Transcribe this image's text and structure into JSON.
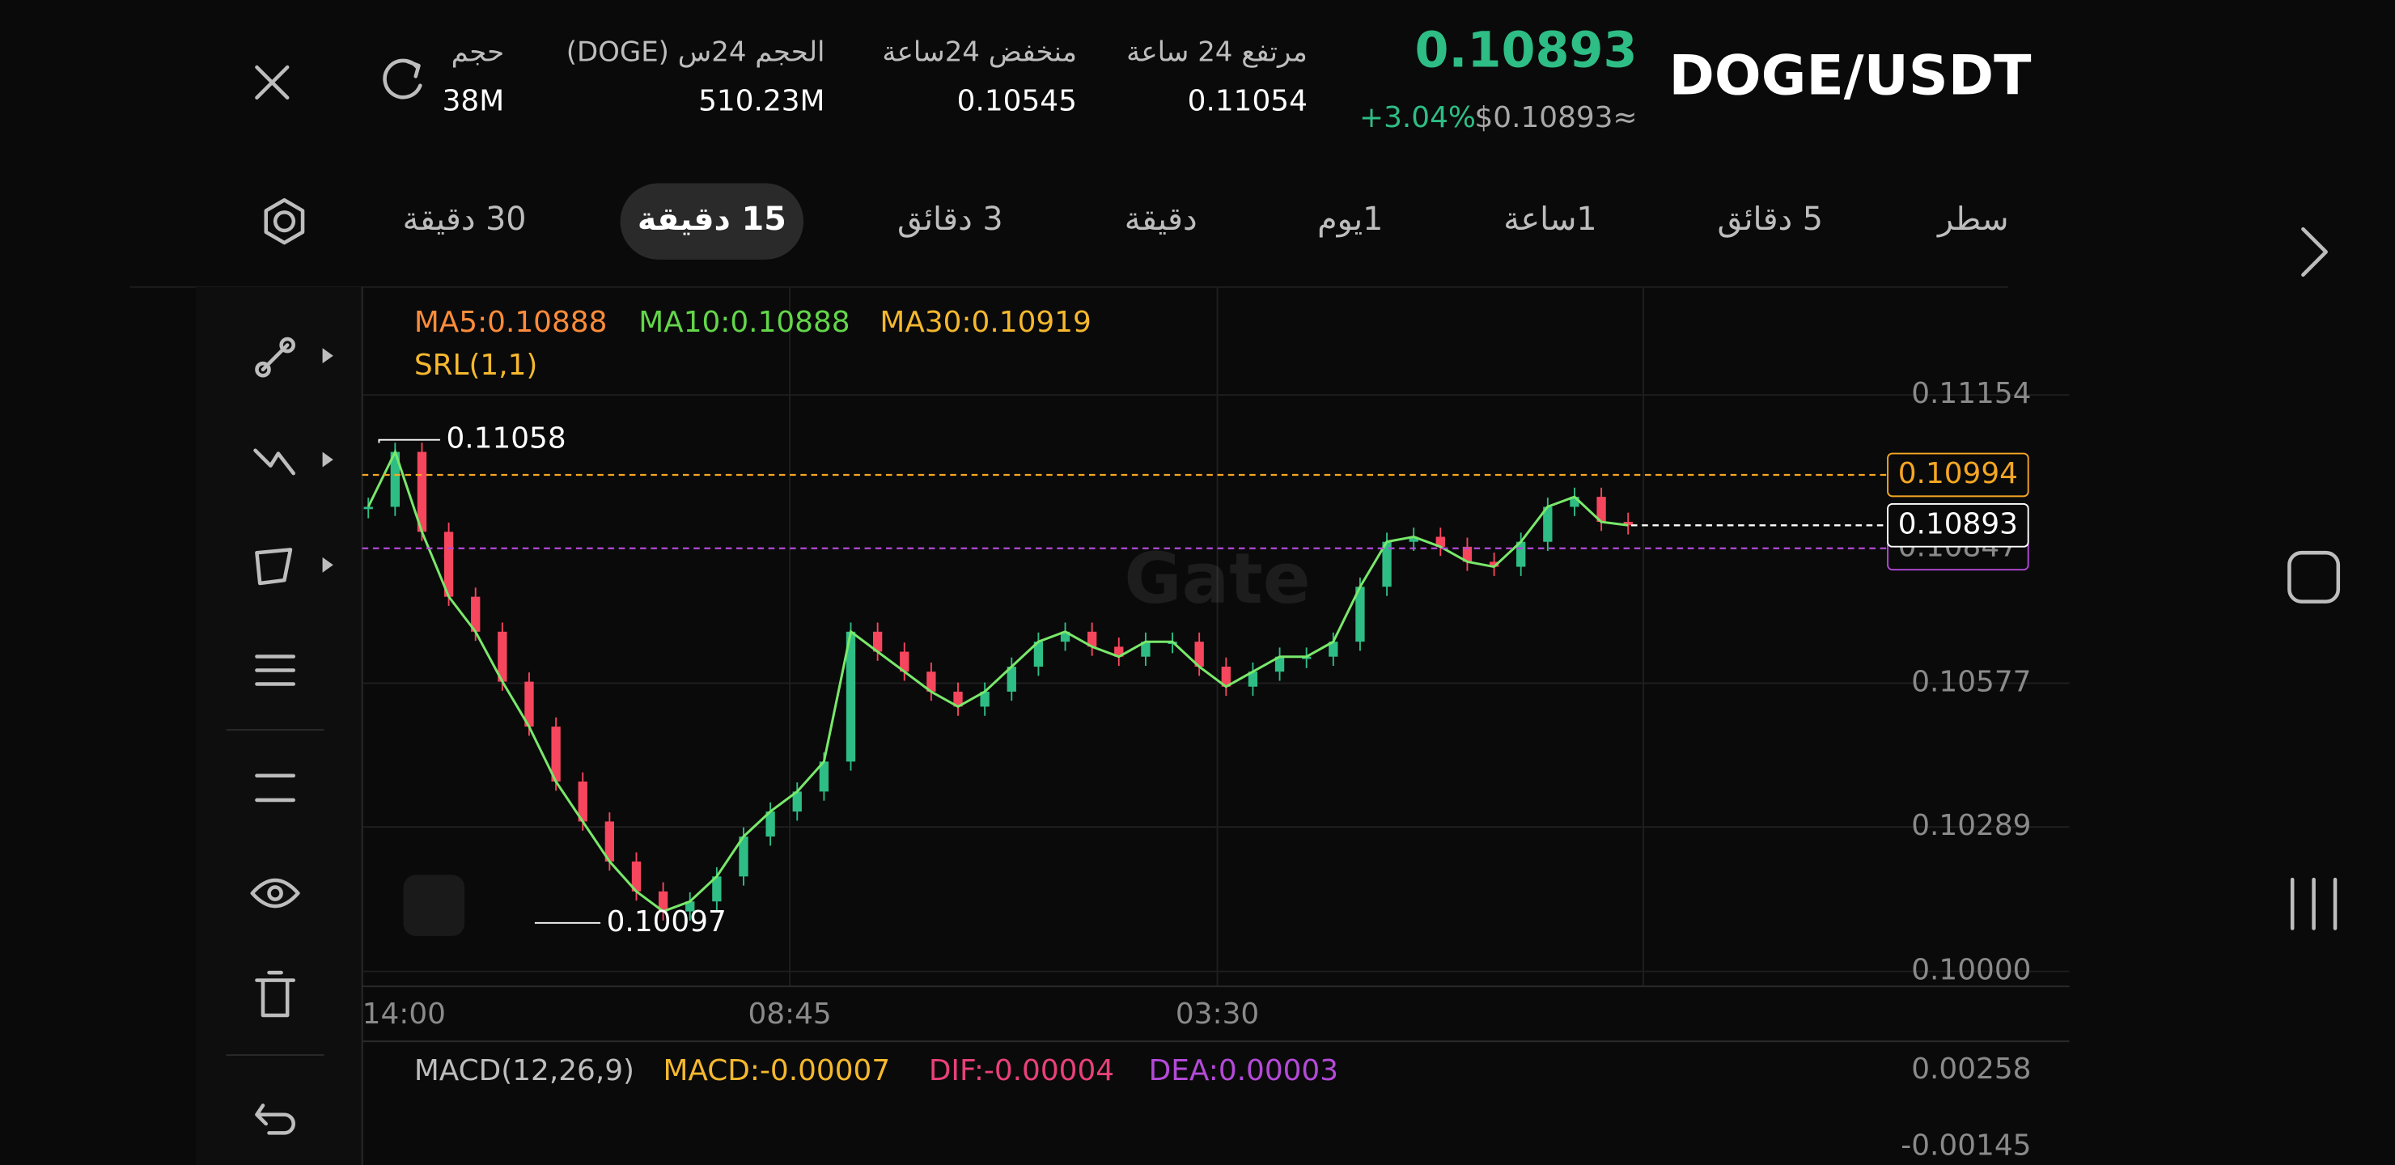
{
  "header": {
    "pair": "DOGE/USDT",
    "last_price": 0.10893,
    "change": "+3.04%",
    "usd_price": "$0.10893≈",
    "stats": [
      {
        "label": "مرتفع 24 ساعة",
        "value": 0.11054
      },
      {
        "label": "منخفض 24ساعة",
        "value": 0.10545
      },
      {
        "label": "الحجم 24س (DOGE)",
        "value": "510.23M"
      },
      {
        "label": "حجم",
        "value": "38M"
      }
    ]
  },
  "tabs": [
    "سطر",
    "5 دقائق",
    "1ساعة",
    "1يوم",
    "دقيقة",
    "3 دقائق",
    "15 دقيقة",
    "30 دقيقة"
  ],
  "active_tab": 6,
  "price_chart": {
    "indicators": [
      "MA5:0.10888",
      "MA10:0.10888",
      "MA30:0.10919"
    ],
    "srl": "SRL(1,1)",
    "watermark": "Gate",
    "ylim": [
      0.0997,
      0.1137
    ],
    "yticks": [
      {
        "value": 0.1,
        "label": "0.10000"
      },
      0.10289,
      0.10577,
      0.11154
    ],
    "x_labels": [
      "14:00",
      "08:45",
      "03:30"
    ],
    "high": 0.11058,
    "low": 0.10097,
    "srl_line": 0.10994,
    "support_line": 0.10847,
    "current_price": 0.10893,
    "up_color": "#2ebd85",
    "down_color": "#f6465d",
    "closes": [
      0.1093,
      0.1104,
      0.1088,
      0.1075,
      0.1068,
      0.1058,
      0.1049,
      0.1038,
      0.103,
      0.1022,
      0.1016,
      0.1012,
      0.1014,
      0.1019,
      0.1027,
      0.1032,
      0.1036,
      0.1042,
      0.1068,
      0.1064,
      0.106,
      0.1056,
      0.1053,
      0.1056,
      0.1061,
      0.1066,
      0.1068,
      0.1065,
      0.1063,
      0.1066,
      0.1066,
      0.1061,
      0.1057,
      0.106,
      0.1063,
      0.1063,
      0.1066,
      0.1077,
      0.1086,
      0.1087,
      0.1085,
      0.1082,
      0.1081,
      0.1086,
      0.1093,
      0.1095,
      0.109,
      0.10893
    ]
  },
  "macd": {
    "title": "MACD(12,26,9)",
    "macd": "MACD:-0.00007",
    "dif": "DIF:-0.00004",
    "dea": "DEA:0.00003",
    "yticks": [
      0.00258,
      -0.00145
    ]
  }
}
